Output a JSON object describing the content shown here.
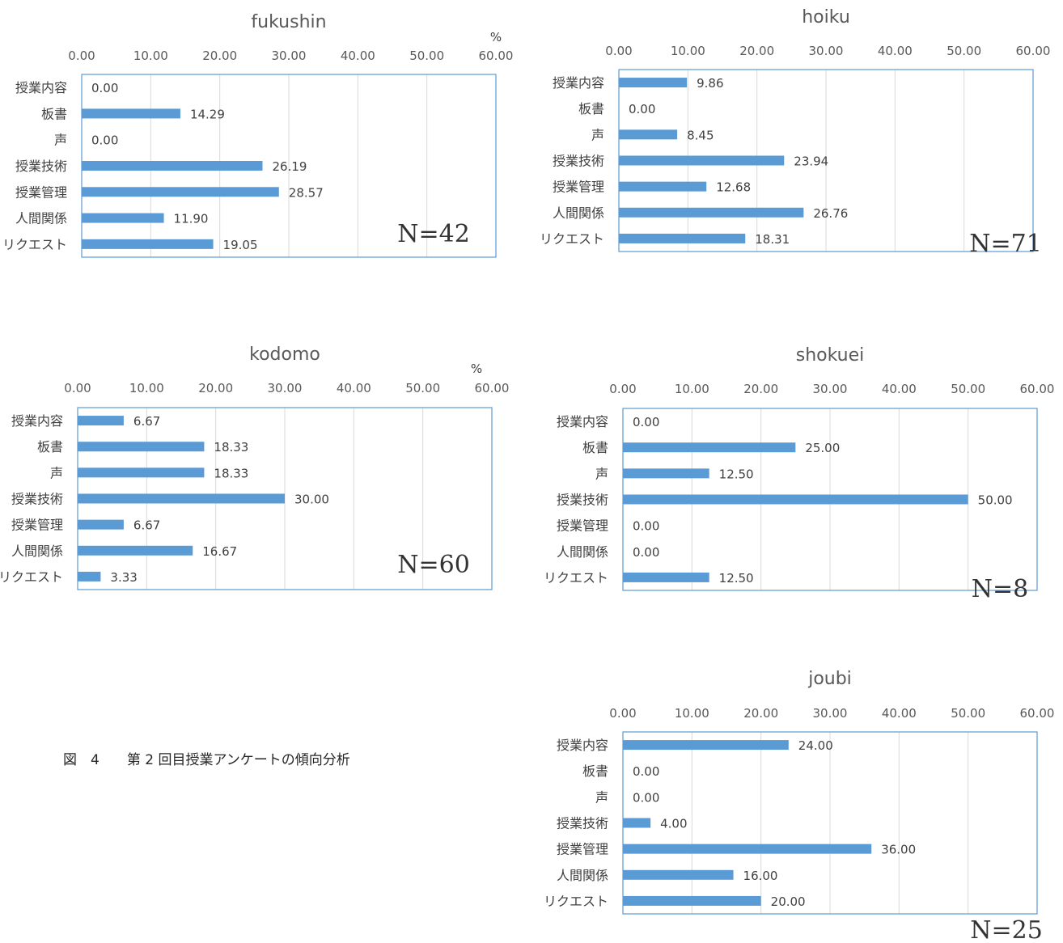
{
  "caption": "図　4　　第 2 回目授業アンケートの傾向分析",
  "chart_data": [
    {
      "type": "bar",
      "title": "fukushin",
      "unit_label": "%",
      "categories": [
        "授業内容",
        "板書",
        "声",
        "授業技術",
        "授業管理",
        "人間関係",
        "リクエスト"
      ],
      "values": [
        0.0,
        14.29,
        0.0,
        26.19,
        28.57,
        11.9,
        19.05
      ],
      "value_labels": [
        "0.00",
        "14.29",
        "0.00",
        "26.19",
        "28.57",
        "11.90",
        "19.05"
      ],
      "xlim": [
        0,
        60
      ],
      "ticks": [
        "0.00",
        "10.00",
        "20.00",
        "30.00",
        "40.00",
        "50.00",
        "60.00"
      ],
      "n_label": "N=42",
      "grid": true,
      "bar_color": "#5B9BD5"
    },
    {
      "type": "bar",
      "title": "hoiku",
      "unit_label": "",
      "categories": [
        "授業内容",
        "板書",
        "声",
        "授業技術",
        "授業管理",
        "人間関係",
        "リクエスト"
      ],
      "values": [
        9.86,
        0.0,
        8.45,
        23.94,
        12.68,
        26.76,
        18.31
      ],
      "value_labels": [
        "9.86",
        "0.00",
        "8.45",
        "23.94",
        "12.68",
        "26.76",
        "18.31"
      ],
      "xlim": [
        0,
        60
      ],
      "ticks": [
        "0.00",
        "10.00",
        "20.00",
        "30.00",
        "40.00",
        "50.00",
        "60.00"
      ],
      "n_label": "N=71",
      "grid": true,
      "bar_color": "#5B9BD5"
    },
    {
      "type": "bar",
      "title": "kodomo",
      "unit_label": "%",
      "categories": [
        "授業内容",
        "板書",
        "声",
        "授業技術",
        "授業管理",
        "人間関係",
        "リクエスト"
      ],
      "values": [
        6.67,
        18.33,
        18.33,
        30.0,
        6.67,
        16.67,
        3.33
      ],
      "value_labels": [
        "6.67",
        "18.33",
        "18.33",
        "30.00",
        "6.67",
        "16.67",
        "3.33"
      ],
      "xlim": [
        0,
        60
      ],
      "ticks": [
        "0.00",
        "10.00",
        "20.00",
        "30.00",
        "40.00",
        "50.00",
        "60.00"
      ],
      "n_label": "N=60",
      "grid": true,
      "bar_color": "#5B9BD5"
    },
    {
      "type": "bar",
      "title": "shokuei",
      "unit_label": "",
      "categories": [
        "授業内容",
        "板書",
        "声",
        "授業技術",
        "授業管理",
        "人間関係",
        "リクエスト"
      ],
      "values": [
        0.0,
        25.0,
        12.5,
        50.0,
        0.0,
        0.0,
        12.5
      ],
      "value_labels": [
        "0.00",
        "25.00",
        "12.50",
        "50.00",
        "0.00",
        "0.00",
        "12.50"
      ],
      "xlim": [
        0,
        60
      ],
      "ticks": [
        "0.00",
        "10.00",
        "20.00",
        "30.00",
        "40.00",
        "50.00",
        "60.00"
      ],
      "n_label": "N=8",
      "grid": true,
      "bar_color": "#5B9BD5"
    },
    {
      "type": "bar",
      "title": "joubi",
      "unit_label": "",
      "categories": [
        "授業内容",
        "板書",
        "声",
        "授業技術",
        "授業管理",
        "人間関係",
        "リクエスト"
      ],
      "values": [
        24.0,
        0.0,
        0.0,
        4.0,
        36.0,
        16.0,
        20.0
      ],
      "value_labels": [
        "24.00",
        "0.00",
        "0.00",
        "4.00",
        "36.00",
        "16.00",
        "20.00"
      ],
      "xlim": [
        0,
        60
      ],
      "ticks": [
        "0.00",
        "10.00",
        "20.00",
        "30.00",
        "40.00",
        "50.00",
        "60.00"
      ],
      "n_label": "N=25",
      "grid": true,
      "bar_color": "#5B9BD5"
    }
  ]
}
